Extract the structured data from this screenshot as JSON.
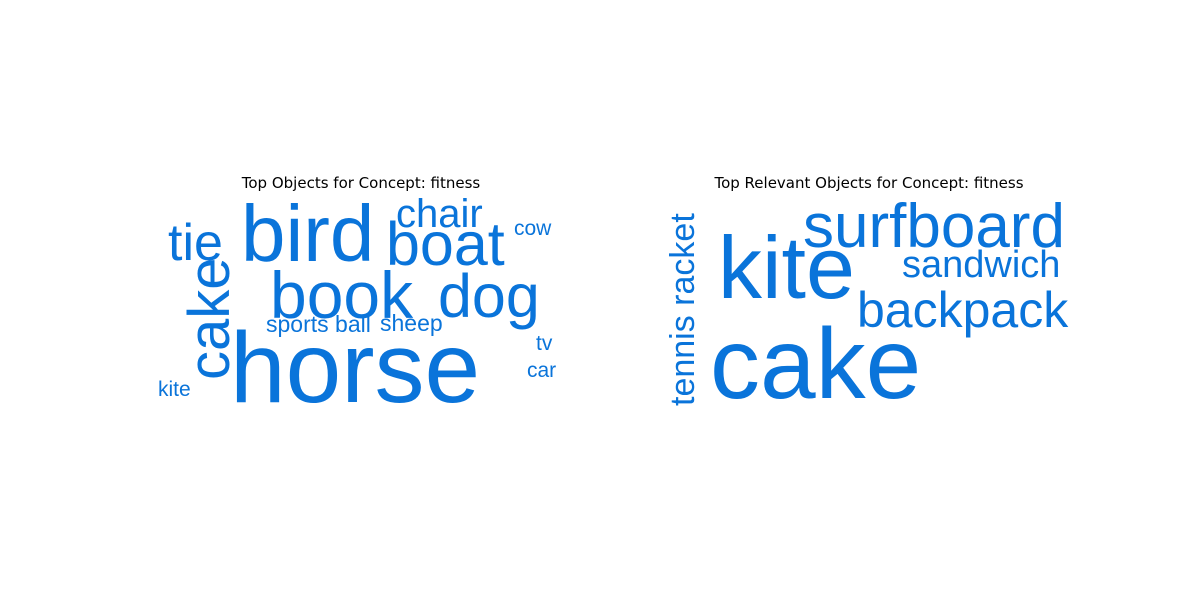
{
  "accent": "#0a74da",
  "chart_data": [
    {
      "type": "wordcloud",
      "title": "Top Objects for Concept: fitness",
      "words": [
        {
          "text": "horse",
          "weight": 100,
          "rotated": false
        },
        {
          "text": "bird",
          "weight": 80,
          "rotated": false
        },
        {
          "text": "book",
          "weight": 66,
          "rotated": false
        },
        {
          "text": "boat",
          "weight": 61,
          "rotated": false
        },
        {
          "text": "dog",
          "weight": 61,
          "rotated": false
        },
        {
          "text": "cake",
          "weight": 58,
          "rotated": true
        },
        {
          "text": "tie",
          "weight": 52,
          "rotated": false
        },
        {
          "text": "chair",
          "weight": 40,
          "rotated": false
        },
        {
          "text": "sports ball",
          "weight": 23,
          "rotated": false
        },
        {
          "text": "sheep",
          "weight": 23,
          "rotated": false
        },
        {
          "text": "cow",
          "weight": 21,
          "rotated": false
        },
        {
          "text": "tv",
          "weight": 21,
          "rotated": false
        },
        {
          "text": "car",
          "weight": 21,
          "rotated": false
        },
        {
          "text": "kite",
          "weight": 21,
          "rotated": false
        }
      ]
    },
    {
      "type": "wordcloud",
      "title": "Top Relevant Objects for Concept: fitness",
      "words": [
        {
          "text": "cake",
          "weight": 100,
          "rotated": false
        },
        {
          "text": "kite",
          "weight": 88,
          "rotated": false
        },
        {
          "text": "surfboard",
          "weight": 62,
          "rotated": false
        },
        {
          "text": "backpack",
          "weight": 50,
          "rotated": false
        },
        {
          "text": "sandwich",
          "weight": 38,
          "rotated": false
        },
        {
          "text": "tennis racket",
          "weight": 34,
          "rotated": true
        }
      ]
    }
  ]
}
